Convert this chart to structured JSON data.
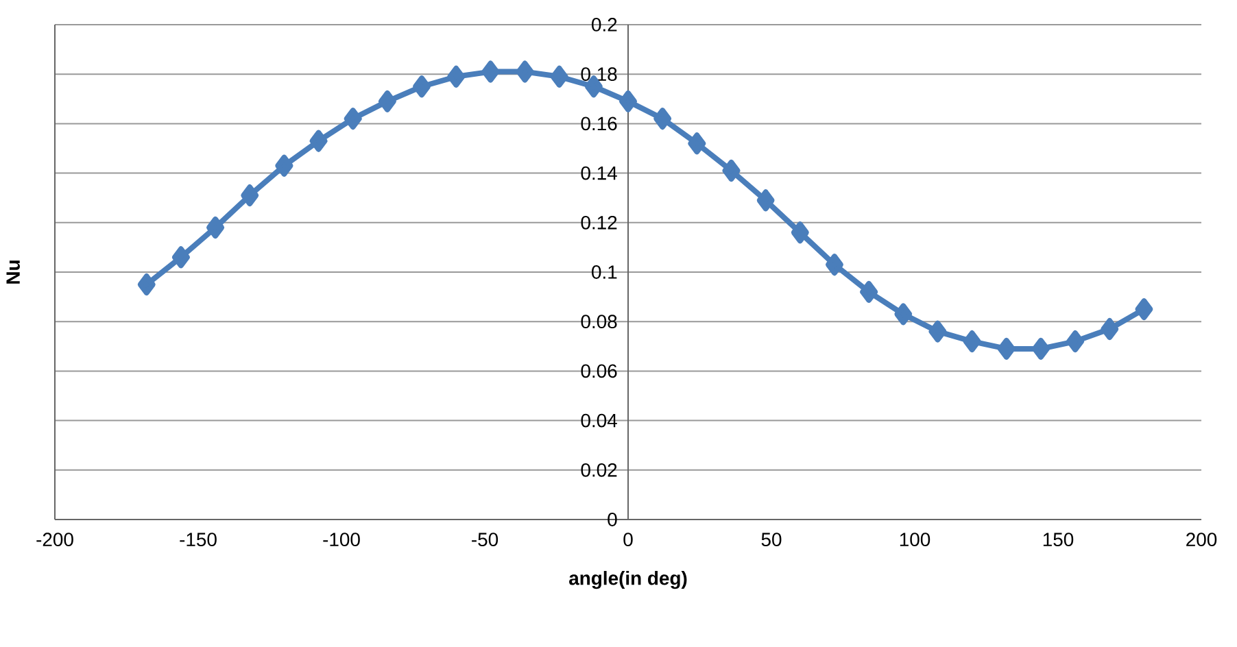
{
  "chart_data": {
    "type": "line",
    "xlabel": "angle(in deg)",
    "ylabel": "Nu",
    "xlim": [
      -200,
      200
    ],
    "ylim": [
      0,
      0.2
    ],
    "xticks": [
      -200,
      -150,
      -100,
      -50,
      0,
      50,
      100,
      150,
      200
    ],
    "yticks": [
      0,
      0.02,
      0.04,
      0.06,
      0.08,
      0.1,
      0.12,
      0.14,
      0.16,
      0.18,
      0.2
    ],
    "grid": "y",
    "marker": "diamond",
    "line_style": "solid",
    "series": [
      {
        "color": "#4a7ebb",
        "x": [
          -168,
          -156,
          -144,
          -132,
          -120,
          -108,
          -96,
          -84,
          -72,
          -60,
          -48,
          -36,
          -24,
          -12,
          0,
          12,
          24,
          36,
          48,
          60,
          72,
          84,
          96,
          108,
          120,
          132,
          144,
          156,
          168,
          180
        ],
        "values": [
          0.095,
          0.106,
          0.118,
          0.131,
          0.143,
          0.153,
          0.162,
          0.169,
          0.175,
          0.179,
          0.181,
          0.181,
          0.179,
          0.175,
          0.169,
          0.162,
          0.152,
          0.141,
          0.129,
          0.116,
          0.103,
          0.092,
          0.083,
          0.076,
          0.072,
          0.069,
          0.069,
          0.072,
          0.077,
          0.085
        ]
      }
    ]
  }
}
